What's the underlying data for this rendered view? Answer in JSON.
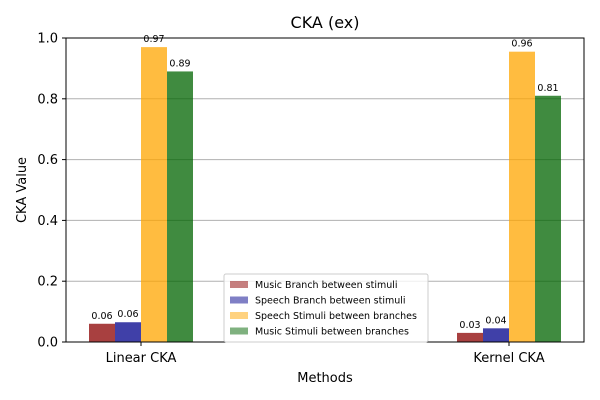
{
  "chart_data": {
    "type": "bar",
    "title": "CKA (ex)",
    "xlabel": "Methods",
    "ylabel": "CKA Value",
    "categories": [
      "Linear CKA",
      "Kernel CKA"
    ],
    "ylim": [
      0.0,
      1.0
    ],
    "yticks": [
      "0.0",
      "0.2",
      "0.4",
      "0.6",
      "0.8",
      "1.0"
    ],
    "grid": "horizontal",
    "legend_position": "lower-center",
    "series": [
      {
        "name": "Music Branch between stimuli",
        "color": "#8b0000",
        "values": [
          0.06,
          0.03
        ],
        "labels": [
          "0.06",
          "0.03"
        ]
      },
      {
        "name": "Speech Branch between stimuli",
        "color": "#00008b",
        "values": [
          0.065,
          0.045
        ],
        "labels": [
          "0.06",
          "0.04"
        ]
      },
      {
        "name": "Speech Stimuli between branches",
        "color": "#ffa500",
        "values": [
          0.97,
          0.955
        ],
        "labels": [
          "0.97",
          "0.96"
        ]
      },
      {
        "name": "Music Stimuli between branches",
        "color": "#006400",
        "values": [
          0.89,
          0.81
        ],
        "labels": [
          "0.89",
          "0.81"
        ]
      }
    ]
  }
}
